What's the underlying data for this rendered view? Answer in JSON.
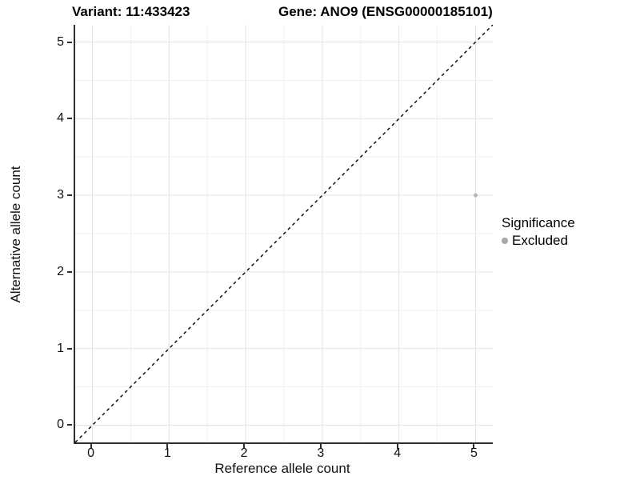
{
  "title": {
    "variant": "Variant: 11:433423",
    "gene": "Gene: ANO9 (ENSG00000185101)"
  },
  "axes": {
    "x": {
      "label": "Reference allele count",
      "ticks": [
        "0",
        "1",
        "2",
        "3",
        "4",
        "5"
      ]
    },
    "y": {
      "label": "Alternative allele count",
      "ticks": [
        "0",
        "1",
        "2",
        "3",
        "4",
        "5"
      ]
    }
  },
  "legend": {
    "title": "Significance",
    "items": [
      {
        "label": "Excluded",
        "color": "#a8a8a8"
      }
    ]
  },
  "colors": {
    "background": "#ffffff",
    "axis_line": "#2e2e2e",
    "grid_major": "#e4e4e4",
    "grid_minor": "#efefef",
    "reference_line": "#000000",
    "point": "#b5b5b5"
  },
  "chart_data": {
    "type": "scatter",
    "title": "Variant: 11:433423   Gene: ANO9 (ENSG00000185101)",
    "xlabel": "Reference allele count",
    "ylabel": "Alternative allele count",
    "xlim": [
      -0.225,
      5.225
    ],
    "ylim": [
      -0.225,
      5.225
    ],
    "x_ticks": [
      0,
      1,
      2,
      3,
      4,
      5
    ],
    "y_ticks": [
      0,
      1,
      2,
      3,
      4,
      5
    ],
    "grid": "on",
    "legend_position": "right",
    "reference_line": {
      "type": "identity y=x",
      "style": "dashed",
      "color": "#000000"
    },
    "series": [
      {
        "name": "Excluded",
        "color": "#b5b5b5",
        "points": [
          {
            "x": 5,
            "y": 3
          }
        ]
      }
    ]
  }
}
